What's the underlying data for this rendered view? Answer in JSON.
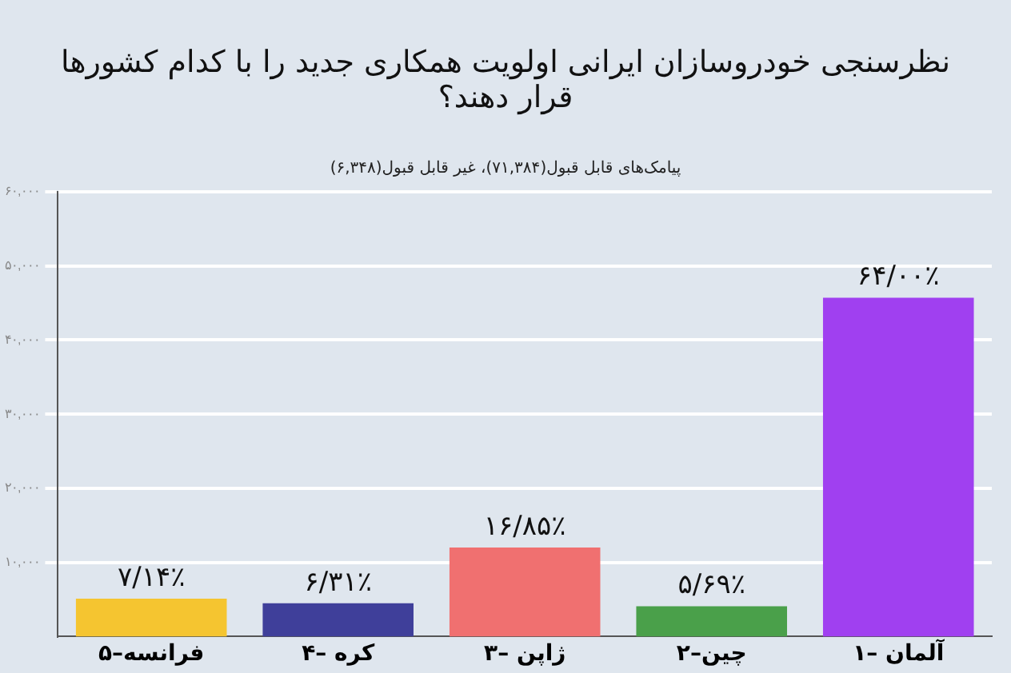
{
  "chart_data": {
    "type": "bar",
    "title": "نظرسنجی خودروسازان ایرانی اولویت همکاری جدید را با کدام کشورها قرار دهند؟",
    "subtitle": "پیامک‌های قابل قبول(۷۱,۳۸۴)، غیر قابل قبول(۶,۳۴۸)",
    "categories": [
      "۵–فرانسه",
      "۴– کره",
      "۳– ژاپن",
      "۲–چین",
      "۱– آلمان"
    ],
    "values": [
      5100,
      4500,
      12000,
      4100,
      45700
    ],
    "colors": [
      "#f5c530",
      "#3f3f9a",
      "#f07070",
      "#4aa04a",
      "#a040f0"
    ],
    "value_labels": [
      "۷/۱۴٪",
      "۶/۳۱٪",
      "۱۶/۸۵٪",
      "۵/۶۹٪",
      "۶۴/۰۰٪"
    ],
    "ylim": [
      0,
      60000
    ],
    "yticks": [
      {
        "value": 10000,
        "label": "۱۰,۰۰۰"
      },
      {
        "value": 20000,
        "label": "۲۰,۰۰۰"
      },
      {
        "value": 30000,
        "label": "۳۰,۰۰۰"
      },
      {
        "value": 40000,
        "label": "۴۰,۰۰۰"
      },
      {
        "value": 50000,
        "label": "۵۰,۰۰۰"
      },
      {
        "value": 60000,
        "label": "۶۰,۰۰۰"
      }
    ],
    "grid": "y",
    "legend": false
  }
}
